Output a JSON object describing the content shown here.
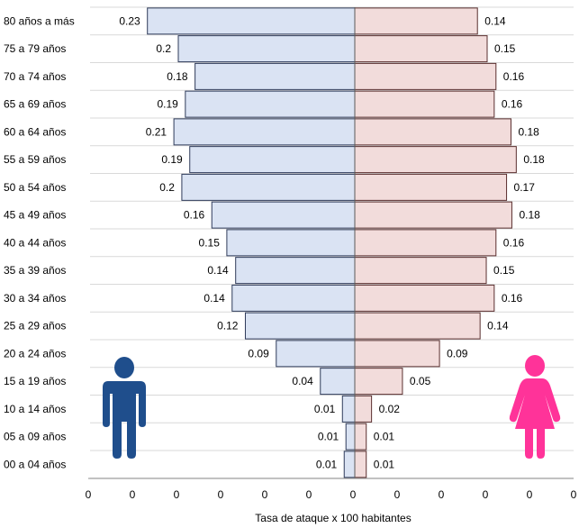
{
  "chart_data": {
    "type": "bar",
    "orientation": "horizontal-population-pyramid",
    "categories": [
      "80 años a más",
      "75 a 79 años",
      "70 a 74 años",
      "65 a 69 años",
      "60 a 64 años",
      "55 a 59 años",
      "50 a 54 años",
      "45 a 49 años",
      "40 a 44 años",
      "35 a 39 años",
      "30 a 34 años",
      "25 a 29 años",
      "20 a 24 años",
      "15 a 19 años",
      "10 a 14 años",
      "05 a 09 años",
      "00 a 04 años"
    ],
    "series": [
      {
        "values": [
          0.23,
          0.2,
          0.18,
          0.19,
          0.21,
          0.19,
          0.2,
          0.16,
          0.15,
          0.14,
          0.14,
          0.12,
          0.09,
          0.04,
          0.01,
          0.01,
          0.01
        ],
        "bar_values": [
          0.235,
          0.2,
          0.181,
          0.192,
          0.205,
          0.187,
          0.196,
          0.162,
          0.145,
          0.135,
          0.139,
          0.124,
          0.089,
          0.039,
          0.014,
          0.01,
          0.012
        ],
        "color": "#dae3f3",
        "border": "#2f3b5a",
        "side": "left",
        "icon": "male-figure-icon",
        "icon_color": "#1f4e8c"
      },
      {
        "values": [
          0.14,
          0.15,
          0.16,
          0.16,
          0.18,
          0.18,
          0.17,
          0.18,
          0.16,
          0.15,
          0.16,
          0.14,
          0.09,
          0.05,
          0.02,
          0.01,
          0.01
        ],
        "bar_values": [
          0.139,
          0.15,
          0.16,
          0.158,
          0.177,
          0.183,
          0.172,
          0.178,
          0.16,
          0.149,
          0.158,
          0.142,
          0.096,
          0.054,
          0.019,
          0.013,
          0.013
        ],
        "color": "#f2dcdb",
        "border": "#5a2f2f",
        "side": "right",
        "icon": "female-figure-icon",
        "icon_color": "#ff3399"
      }
    ],
    "xlabel": "Tasa de ataque x 100 habitantes",
    "x_tick_labels": [
      "0",
      "0",
      "0",
      "0",
      "0",
      "0",
      "0",
      "0",
      "0",
      "0",
      "0",
      "0"
    ],
    "xlim": [
      -0.25,
      0.25
    ],
    "grid": true
  }
}
